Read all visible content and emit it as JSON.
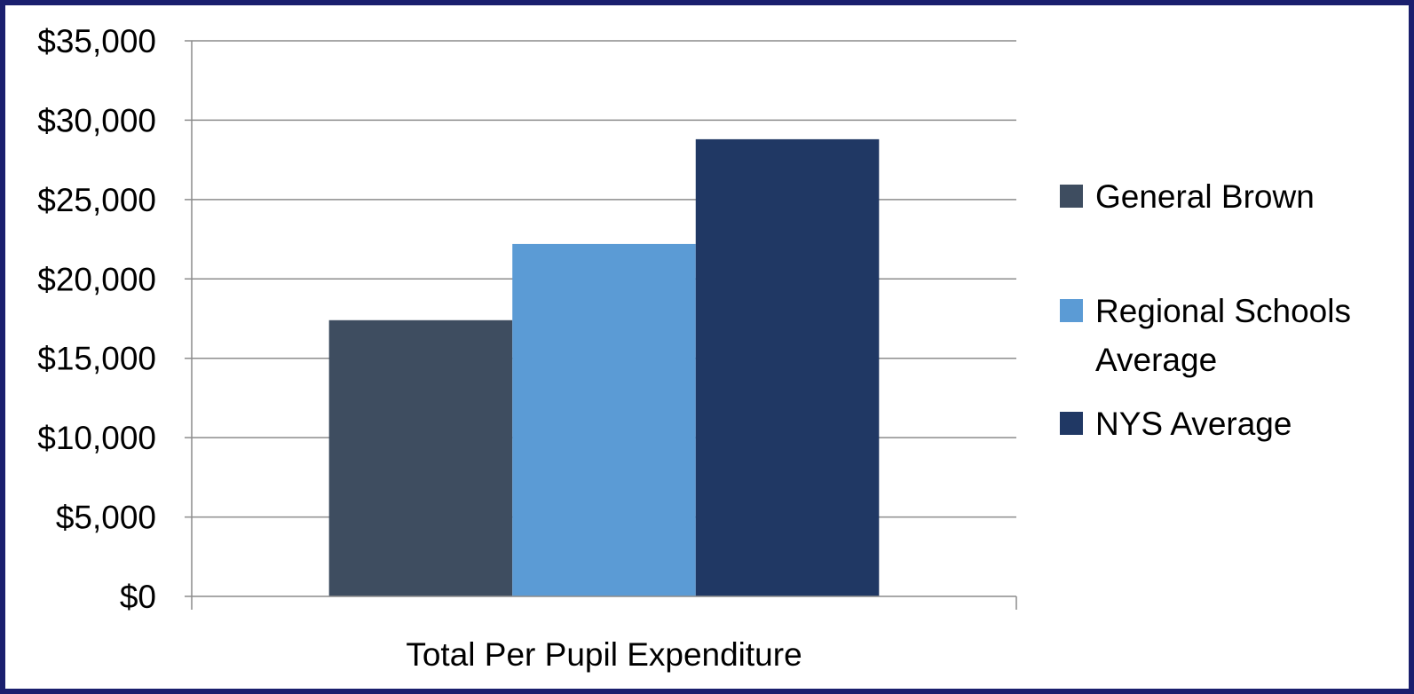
{
  "chart_data": {
    "type": "bar",
    "categories": [
      "Total Per Pupil Expenditure"
    ],
    "series": [
      {
        "name": "General Brown",
        "values": [
          17400
        ],
        "color": "#3e4d60"
      },
      {
        "name": "Regional Schools Average",
        "values": [
          22200
        ],
        "color": "#5b9bd5"
      },
      {
        "name": "NYS Average",
        "values": [
          28800
        ],
        "color": "#203864"
      }
    ],
    "ylim": [
      0,
      35000
    ],
    "yticks": [
      0,
      5000,
      10000,
      15000,
      20000,
      25000,
      30000,
      35000
    ],
    "ytick_labels": [
      "$0",
      "$5,000",
      "$10,000",
      "$15,000",
      "$20,000",
      "$25,000",
      "$30,000",
      "$35,000"
    ],
    "grid": true,
    "legend": "right",
    "legend_lines": [
      [
        "General Brown"
      ],
      [
        "Regional Schools",
        "Average"
      ],
      [
        "NYS Average"
      ]
    ]
  }
}
